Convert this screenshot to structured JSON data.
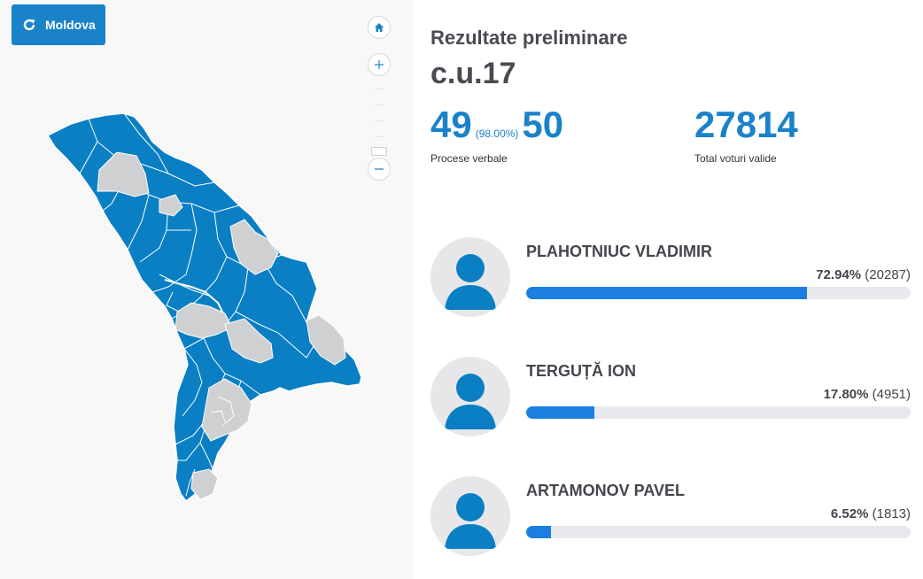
{
  "reset_button": {
    "label": "Moldova",
    "icon": "refresh-icon"
  },
  "zoom": {
    "home_icon": "home-icon",
    "in_icon": "plus-icon",
    "out_icon": "minus-icon"
  },
  "colors": {
    "accent": "#1a82c9",
    "bar": "#1a7fe0",
    "region_reported": "#0a7fc4",
    "region_pending": "#cfd0d2"
  },
  "summary": {
    "heading": "Rezultate preliminare",
    "district": "c.u.17",
    "processed": "49",
    "processed_pct": "(98.00%)",
    "total_stations": "50",
    "processed_label": "Procese verbale",
    "valid_votes": "27814",
    "valid_votes_label": "Total voturi valide"
  },
  "candidates": [
    {
      "name": "PLAHOTNIUC VLADIMIR",
      "percent": "72.94%",
      "votes": "(20287)",
      "share": 72.94
    },
    {
      "name": "TERGUȚĂ ION",
      "percent": "17.80%",
      "votes": "(4951)",
      "share": 17.8
    },
    {
      "name": "ARTAMONOV PAVEL",
      "percent": "6.52%",
      "votes": "(1813)",
      "share": 6.52
    }
  ]
}
